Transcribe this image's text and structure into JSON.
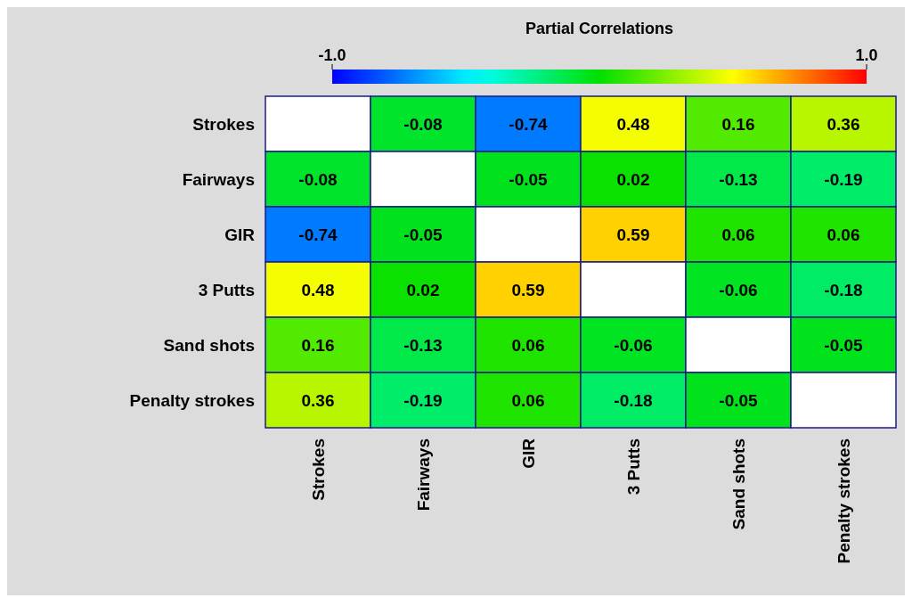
{
  "chart_data": {
    "type": "heatmap",
    "title": "Partial Correlations",
    "categories": [
      "Strokes",
      "Fairways",
      "GIR",
      "3 Putts",
      "Sand shots",
      "Penalty strokes"
    ],
    "y_categories": [
      "Strokes",
      "Fairways",
      "GIR",
      "3 Putts",
      "Sand shots",
      "Penalty strokes"
    ],
    "cells": [
      [
        null,
        -0.08,
        -0.74,
        0.48,
        0.16,
        0.36
      ],
      [
        -0.08,
        null,
        -0.05,
        0.02,
        -0.13,
        -0.19
      ],
      [
        -0.74,
        -0.05,
        null,
        0.59,
        0.06,
        0.06
      ],
      [
        0.48,
        0.02,
        0.59,
        null,
        -0.06,
        -0.18
      ],
      [
        0.16,
        -0.13,
        0.06,
        -0.06,
        null,
        -0.05
      ],
      [
        0.36,
        -0.19,
        0.06,
        -0.18,
        -0.05,
        null
      ]
    ],
    "clim": [
      -1,
      1
    ],
    "cticks": [
      {
        "value": -1,
        "label": "-1.0"
      },
      {
        "value": 1,
        "label": "1.0"
      }
    ],
    "data_labels": true
  }
}
